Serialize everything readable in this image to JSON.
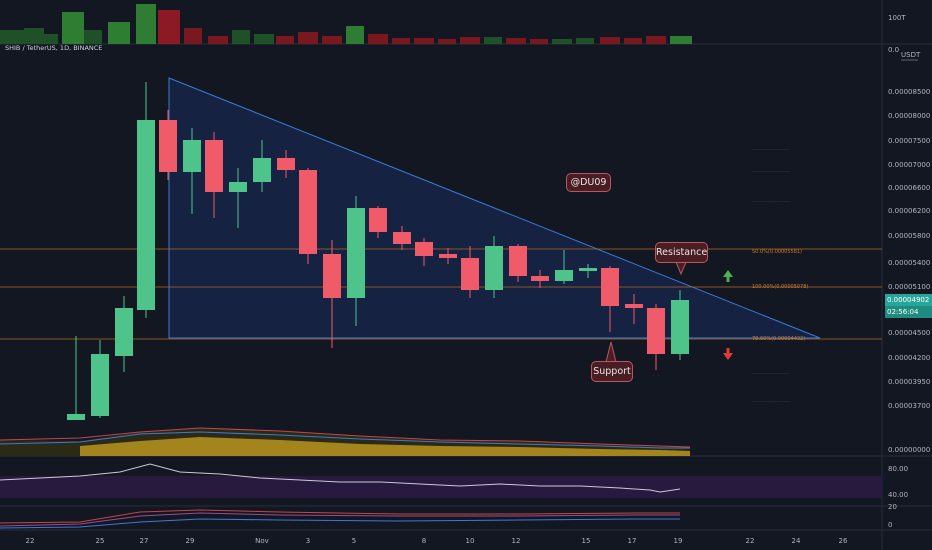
{
  "header": {
    "symbol_title": "SHIB / TetherUS, 1D, BINANCE"
  },
  "volume_scale": {
    "top_label": "100T",
    "bottom_label": "0.0"
  },
  "price_axis": {
    "currency": "USDT",
    "ticks": [
      "0.00008500",
      "0.00008000",
      "0.00007500",
      "0.00007000",
      "0.00006600",
      "0.00006200",
      "0.00005800",
      "0.00005400",
      "0.00005100",
      "0.00004500",
      "0.00004200",
      "0.00003950",
      "0.00003700",
      "0.00000000"
    ],
    "last_price": "0.00004902",
    "countdown": "02:56:04"
  },
  "rsi_axis": {
    "ticks": [
      "80.00",
      "40.00"
    ]
  },
  "osc_axis": {
    "ticks": [
      "20",
      "0"
    ]
  },
  "time_axis": {
    "labels": [
      "22",
      "25",
      "27",
      "29",
      "Nov",
      "3",
      "5",
      "8",
      "10",
      "12",
      "15",
      "17",
      "19",
      "22",
      "24",
      "26"
    ]
  },
  "callouts": {
    "watermark": "@DU09",
    "resistance": "Resistance",
    "support": "Support"
  },
  "fib_levels": {
    "upper": "50.0%(0.00005581)",
    "middle": "100.00%(0.00005078)",
    "lower": "78.60%(0.00004432)"
  },
  "colors": {
    "background": "#131722",
    "bull": "#4fc48a",
    "bear": "#f05b6a",
    "triangle": "#3a7bd5",
    "fib_line": "#d07e2a",
    "rsi_line": "#c9c9d6",
    "ma_gold": "#b8941f",
    "accent_badge": "#26a69a"
  },
  "icons": {
    "up_arrow": "arrow-up-icon",
    "down_arrow": "arrow-down-icon"
  }
}
